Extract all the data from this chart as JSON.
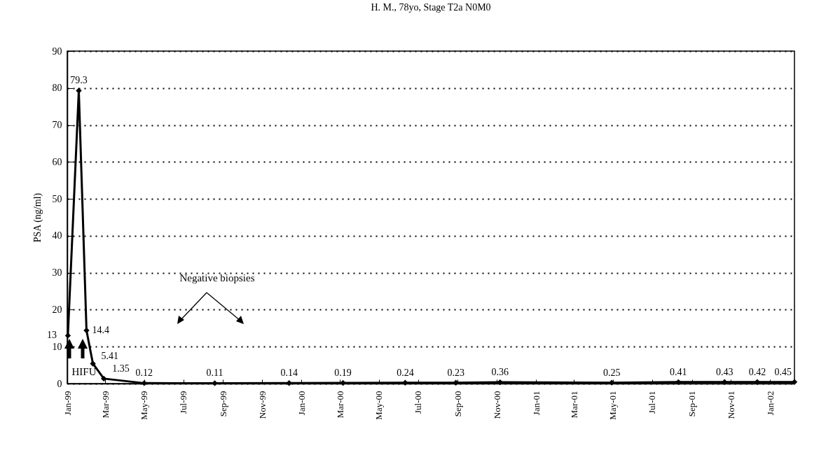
{
  "chart_data": {
    "type": "line",
    "title": "H. M., 78yo, Stage T2a N0M0",
    "ylabel": "PSA (ng/ml)",
    "x": [
      "1999-01-02",
      "1999-01-19",
      "1999-01-31",
      "1999-02-10",
      "1999-02-27",
      "1999-05-01",
      "1999-08-19",
      "1999-12-13",
      "2000-03-06",
      "2000-06-11",
      "2000-08-29",
      "2000-11-06",
      "2001-04-29",
      "2001-08-11",
      "2001-10-22",
      "2001-12-12",
      "2002-02-08"
    ],
    "series": [
      {
        "color": "#000000",
        "values": [
          13,
          79.3,
          14.4,
          5.41,
          1.35,
          0.12,
          0.11,
          0.14,
          0.19,
          0.24,
          0.23,
          0.36,
          0.25,
          0.41,
          0.43,
          0.42,
          0.45
        ]
      }
    ],
    "data_labels": true,
    "marker": "diamond",
    "line_style": "solid",
    "grid": "y",
    "xlim": [
      "1999-01-01",
      "2002-02-08"
    ],
    "xticks": [
      {
        "value": "1999-01-01",
        "label": "Jan-99"
      },
      {
        "value": "1999-03-01",
        "label": "Mar-99"
      },
      {
        "value": "1999-05-01",
        "label": "May-99"
      },
      {
        "value": "1999-07-01",
        "label": "Jul-99"
      },
      {
        "value": "1999-09-01",
        "label": "Sep-99"
      },
      {
        "value": "1999-11-01",
        "label": "Nov-99"
      },
      {
        "value": "2000-01-01",
        "label": "Jan-00"
      },
      {
        "value": "2000-03-01",
        "label": "Mar-00"
      },
      {
        "value": "2000-05-01",
        "label": "May-00"
      },
      {
        "value": "2000-07-01",
        "label": "Jul-00"
      },
      {
        "value": "2000-09-01",
        "label": "Sep-00"
      },
      {
        "value": "2000-11-01",
        "label": "Nov-00"
      },
      {
        "value": "2001-01-01",
        "label": "Jan-01"
      },
      {
        "value": "2001-03-01",
        "label": "Mar-01"
      },
      {
        "value": "2001-05-01",
        "label": "May-01"
      },
      {
        "value": "2001-07-01",
        "label": "Jul-01"
      },
      {
        "value": "2001-09-01",
        "label": "Sep-01"
      },
      {
        "value": "2001-11-01",
        "label": "Nov-01"
      },
      {
        "value": "2002-01-01",
        "label": "Jan-02"
      }
    ],
    "ylim": [
      0,
      90
    ],
    "yticks": [
      0,
      10,
      20,
      30,
      40,
      50,
      60,
      70,
      80,
      90
    ],
    "annotations": [
      "Negative biopsies",
      "HIFU"
    ]
  }
}
